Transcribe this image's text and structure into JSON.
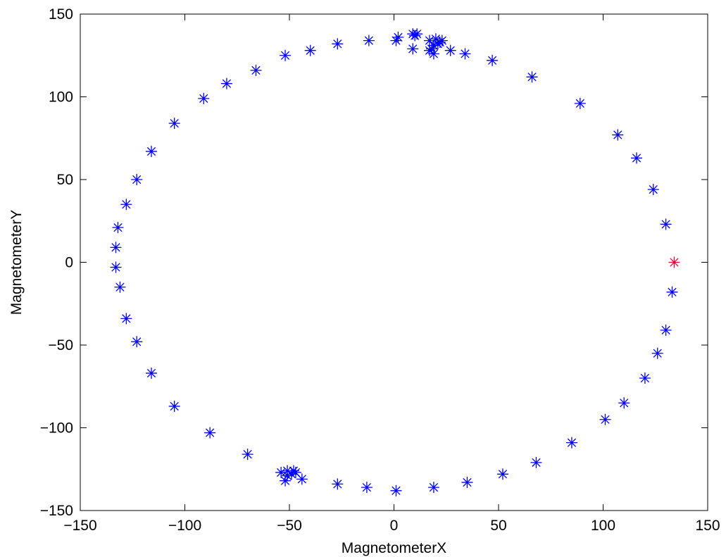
{
  "chart_data": {
    "type": "scatter",
    "title": "",
    "xlabel": "MagnetometerX",
    "ylabel": "MagnetometerY",
    "xlim": [
      -150,
      150
    ],
    "ylim": [
      -150,
      150
    ],
    "xticks": [
      -150,
      -100,
      -50,
      0,
      50,
      100,
      150
    ],
    "yticks": [
      -150,
      -100,
      -50,
      0,
      50,
      100,
      150
    ],
    "xtick_labels": [
      "−150",
      "−100",
      "−50",
      "0",
      "50",
      "100",
      "150"
    ],
    "ytick_labels": [
      "−150",
      "−100",
      "−50",
      "0",
      "50",
      "100",
      "150"
    ],
    "grid": false,
    "marker": "asterisk",
    "series": [
      {
        "color": "#0000ff",
        "points": [
          [
            2,
            136
          ],
          [
            9,
            138
          ],
          [
            10,
            137
          ],
          [
            11,
            138
          ],
          [
            9,
            129
          ],
          [
            17,
            134
          ],
          [
            17,
            128
          ],
          [
            18,
            129
          ],
          [
            19,
            131
          ],
          [
            19,
            126
          ],
          [
            20,
            135
          ],
          [
            21,
            132
          ],
          [
            22,
            133
          ],
          [
            23,
            134
          ],
          [
            27,
            128
          ],
          [
            34,
            126
          ],
          [
            47,
            122
          ],
          [
            66,
            112
          ],
          [
            89,
            96
          ],
          [
            107,
            77
          ],
          [
            116,
            63
          ],
          [
            124,
            44
          ],
          [
            130,
            23
          ],
          [
            133,
            -18
          ],
          [
            130,
            -41
          ],
          [
            126,
            -55
          ],
          [
            120,
            -70
          ],
          [
            110,
            -85
          ],
          [
            101,
            -95
          ],
          [
            85,
            -109
          ],
          [
            68,
            -121
          ],
          [
            52,
            -128
          ],
          [
            35,
            -133
          ],
          [
            19,
            -136
          ],
          [
            1,
            -138
          ],
          [
            -13,
            -136
          ],
          [
            -27,
            -134
          ],
          [
            -44,
            -131
          ],
          [
            -47,
            -127
          ],
          [
            -48,
            -126
          ],
          [
            -49,
            -128
          ],
          [
            -51,
            -126
          ],
          [
            -51,
            -129
          ],
          [
            -52,
            -132
          ],
          [
            -54,
            -127
          ],
          [
            -70,
            -116
          ],
          [
            -88,
            -103
          ],
          [
            -105,
            -87
          ],
          [
            -116,
            -67
          ],
          [
            -123,
            -48
          ],
          [
            -128,
            -34
          ],
          [
            -131,
            -15
          ],
          [
            -133,
            -3
          ],
          [
            -133,
            9
          ],
          [
            -132,
            21
          ],
          [
            -128,
            35
          ],
          [
            -123,
            50
          ],
          [
            -116,
            67
          ],
          [
            -105,
            84
          ],
          [
            -91,
            99
          ],
          [
            -80,
            108
          ],
          [
            -66,
            116
          ],
          [
            -52,
            125
          ],
          [
            -40,
            128
          ],
          [
            -27,
            132
          ],
          [
            -12,
            134
          ],
          [
            1,
            134
          ]
        ]
      },
      {
        "color": "#e8003a",
        "points": [
          [
            134,
            0
          ]
        ]
      }
    ]
  }
}
